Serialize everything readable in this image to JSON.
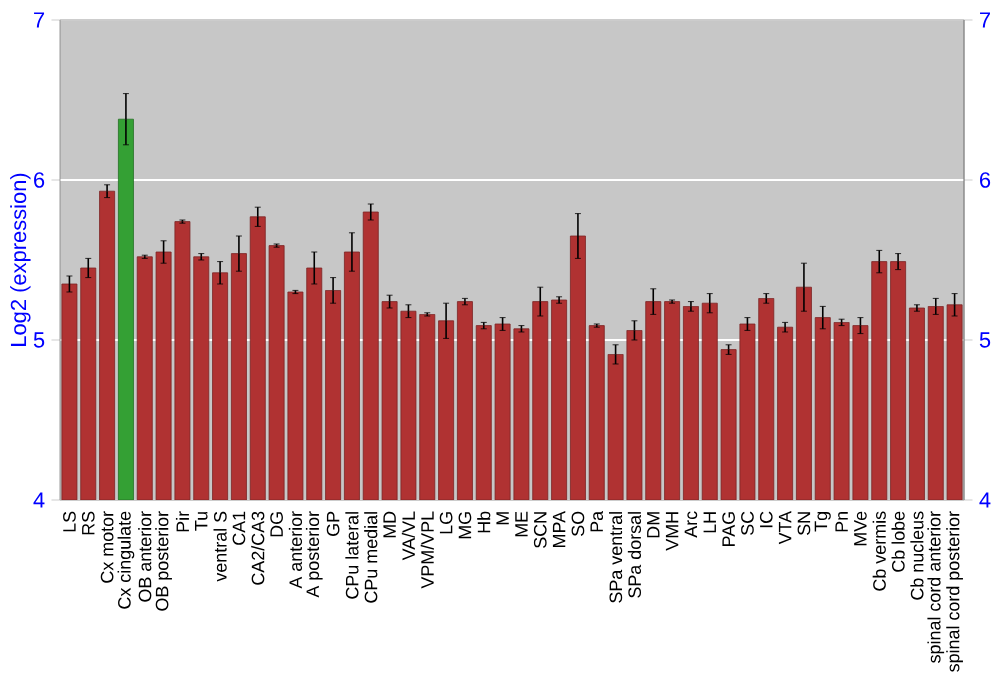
{
  "chart_data": {
    "type": "bar",
    "ylabel": "Log2 (expression)",
    "categories": [
      "LS",
      "RS",
      "Cx motor",
      "Cx cingulate",
      "OB anterior",
      "OB posterior",
      "Pir",
      "Tu",
      "ventral S",
      "CA1",
      "CA2/CA3",
      "DG",
      "A anterior",
      "A posterior",
      "GP",
      "CPu lateral",
      "CPu medial",
      "MD",
      "VA/VL",
      "VPM/VPL",
      "LG",
      "MG",
      "Hb",
      "M",
      "ME",
      "SCN",
      "MPA",
      "SO",
      "Pa",
      "SPa ventral",
      "SPa dorsal",
      "DM",
      "VMH",
      "Arc",
      "LH",
      "PAG",
      "SC",
      "IC",
      "VTA",
      "SN",
      "Tg",
      "Pn",
      "MVe",
      "Cb vermis",
      "Cb lobe",
      "Cb nucleus",
      "spinal cord anterior",
      "spinal cord posterior"
    ],
    "values": [
      5.35,
      5.45,
      5.93,
      6.38,
      5.52,
      5.55,
      5.74,
      5.52,
      5.42,
      5.54,
      5.77,
      5.59,
      5.3,
      5.45,
      5.31,
      5.55,
      5.8,
      5.24,
      5.18,
      5.16,
      5.12,
      5.24,
      5.09,
      5.1,
      5.07,
      5.24,
      5.25,
      5.65,
      5.09,
      4.91,
      5.06,
      5.24,
      5.24,
      5.21,
      5.23,
      4.94,
      5.1,
      5.26,
      5.08,
      5.33,
      5.14,
      5.11,
      5.09,
      5.49,
      5.49,
      5.2,
      5.21,
      5.22
    ],
    "errors": [
      0.05,
      0.06,
      0.04,
      0.16,
      0.01,
      0.07,
      0.01,
      0.02,
      0.07,
      0.11,
      0.06,
      0.01,
      0.01,
      0.1,
      0.08,
      0.12,
      0.05,
      0.04,
      0.04,
      0.01,
      0.11,
      0.02,
      0.02,
      0.04,
      0.02,
      0.09,
      0.02,
      0.14,
      0.01,
      0.06,
      0.06,
      0.08,
      0.01,
      0.03,
      0.06,
      0.03,
      0.04,
      0.03,
      0.03,
      0.15,
      0.07,
      0.02,
      0.05,
      0.07,
      0.05,
      0.02,
      0.05,
      0.07
    ],
    "colors": [
      "#b03232",
      "#b03232",
      "#b03232",
      "#34a034",
      "#b03232",
      "#b03232",
      "#b03232",
      "#b03232",
      "#b03232",
      "#b03232",
      "#b03232",
      "#b03232",
      "#b03232",
      "#b03232",
      "#b03232",
      "#b03232",
      "#b03232",
      "#b03232",
      "#b03232",
      "#b03232",
      "#b03232",
      "#b03232",
      "#b03232",
      "#b03232",
      "#b03232",
      "#b03232",
      "#b03232",
      "#b03232",
      "#b03232",
      "#b03232",
      "#b03232",
      "#b03232",
      "#b03232",
      "#b03232",
      "#b03232",
      "#b03232",
      "#b03232",
      "#b03232",
      "#b03232",
      "#b03232",
      "#b03232",
      "#b03232",
      "#b03232",
      "#b03232",
      "#b03232",
      "#b03232",
      "#b03232",
      "#b03232"
    ],
    "ylim": [
      4,
      7
    ],
    "yticks": [
      4,
      5,
      6,
      7
    ],
    "y2lim": [
      4,
      7
    ],
    "y2ticks": [
      4,
      5,
      6,
      7
    ],
    "grid": "y"
  }
}
